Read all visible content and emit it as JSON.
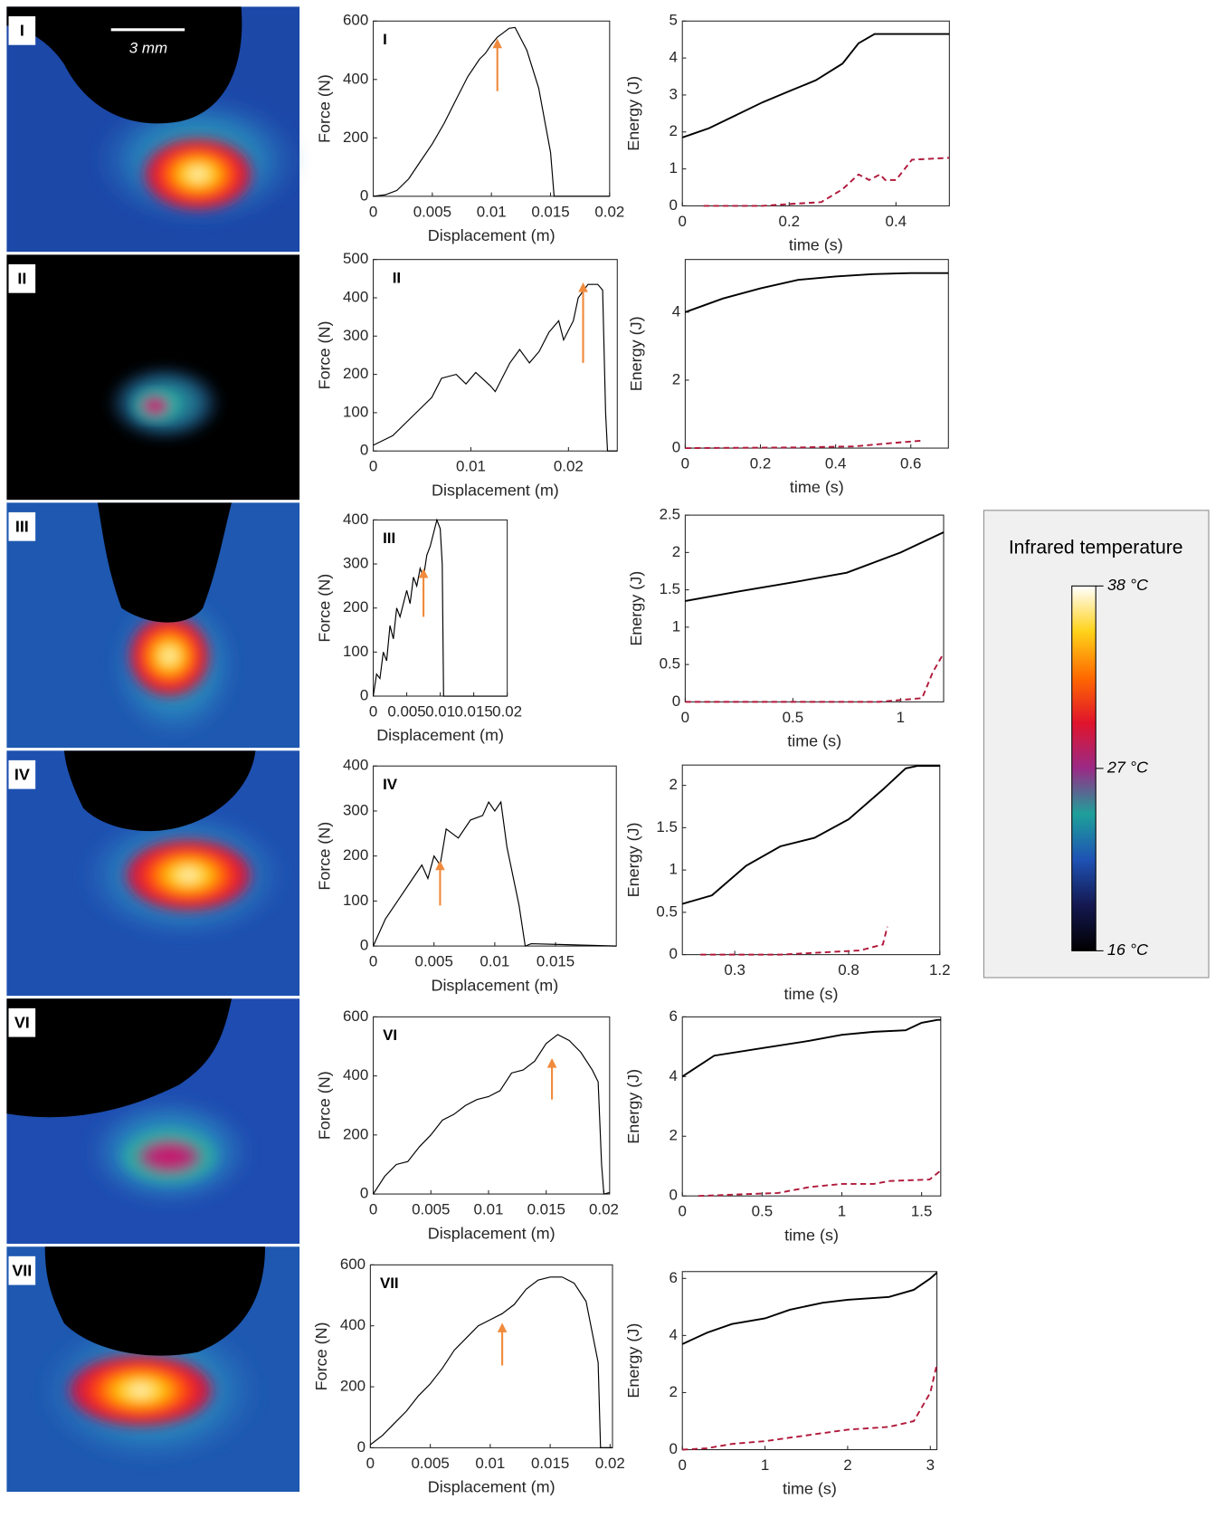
{
  "chart_data": [
    {
      "type": "line",
      "label": "I",
      "xlabel": "Displacement (m)",
      "ylabel": "Force (N)",
      "xlim": [
        0,
        0.02
      ],
      "xticks": [
        0,
        0.005,
        0.01,
        0.015,
        0.02
      ],
      "ylim": [
        0,
        600
      ],
      "yticks": [
        0,
        200,
        400,
        600
      ],
      "series": [
        {
          "color": "#000000",
          "x": [
            0,
            0.001,
            0.002,
            0.003,
            0.004,
            0.005,
            0.006,
            0.007,
            0.008,
            0.009,
            0.0095,
            0.01,
            0.0105,
            0.011,
            0.0115,
            0.012,
            0.013,
            0.014,
            0.015,
            0.0153,
            0.02
          ],
          "values": [
            0,
            5,
            20,
            60,
            120,
            180,
            250,
            330,
            410,
            470,
            490,
            520,
            545,
            560,
            575,
            578,
            500,
            370,
            150,
            0,
            0
          ]
        }
      ],
      "arrow": {
        "x": 0.0105,
        "y": [
          360,
          540
        ],
        "color": "#f08a3c"
      }
    },
    {
      "type": "line",
      "xlabel": "time (s)",
      "ylabel": "Energy (J)",
      "xlim": [
        0,
        0.5
      ],
      "xticks": [
        0,
        0.2,
        0.4
      ],
      "ylim": [
        0,
        5
      ],
      "yticks": [
        0,
        1,
        2,
        3,
        4,
        5
      ],
      "series": [
        {
          "color": "#000000",
          "x": [
            0,
            0.05,
            0.1,
            0.15,
            0.2,
            0.25,
            0.3,
            0.33,
            0.36,
            0.5
          ],
          "values": [
            1.85,
            2.1,
            2.45,
            2.8,
            3.1,
            3.4,
            3.85,
            4.4,
            4.65,
            4.65
          ]
        },
        {
          "color": "#b0183a",
          "dash": true,
          "x": [
            0.04,
            0.15,
            0.2,
            0.26,
            0.3,
            0.33,
            0.35,
            0.37,
            0.38,
            0.4,
            0.43,
            0.5
          ],
          "values": [
            0,
            0,
            0.05,
            0.1,
            0.45,
            0.85,
            0.7,
            0.85,
            0.7,
            0.7,
            1.25,
            1.3
          ]
        }
      ]
    },
    {
      "type": "line",
      "label": "II",
      "xlabel": "Displacement (m)",
      "ylabel": "Force (N)",
      "xlim": [
        0,
        0.025
      ],
      "xticks": [
        0,
        0.01,
        0.02
      ],
      "ylim": [
        0,
        500
      ],
      "yticks": [
        0,
        100,
        200,
        300,
        400,
        500
      ],
      "series": [
        {
          "color": "#000000",
          "x": [
            0,
            0.002,
            0.004,
            0.006,
            0.007,
            0.0085,
            0.0095,
            0.0105,
            0.012,
            0.0125,
            0.014,
            0.015,
            0.016,
            0.017,
            0.018,
            0.019,
            0.0195,
            0.0205,
            0.021,
            0.022,
            0.023,
            0.0235,
            0.0238,
            0.024,
            0.025
          ],
          "values": [
            15,
            40,
            90,
            140,
            190,
            200,
            175,
            205,
            170,
            155,
            230,
            265,
            230,
            260,
            310,
            340,
            290,
            340,
            400,
            435,
            435,
            420,
            100,
            0,
            0
          ]
        }
      ],
      "arrow": {
        "x": 0.0215,
        "y": [
          230,
          440
        ],
        "color": "#f08a3c"
      }
    },
    {
      "type": "line",
      "xlabel": "time (s)",
      "ylabel": "Energy (J)",
      "xlim": [
        0,
        0.7
      ],
      "xticks": [
        0,
        0.2,
        0.4,
        0.6
      ],
      "ylim": [
        0,
        5.55
      ],
      "yticks": [
        0,
        2,
        4
      ],
      "series": [
        {
          "color": "#000000",
          "x": [
            0,
            0.1,
            0.2,
            0.3,
            0.4,
            0.5,
            0.6,
            0.7
          ],
          "values": [
            4.0,
            4.4,
            4.7,
            4.95,
            5.05,
            5.12,
            5.15,
            5.15
          ]
        },
        {
          "color": "#b0183a",
          "dash": true,
          "x": [
            0,
            0.3,
            0.45,
            0.55,
            0.63
          ],
          "values": [
            0,
            0.02,
            0.05,
            0.15,
            0.22
          ]
        }
      ]
    },
    {
      "type": "line",
      "label": "III",
      "xlabel": "Displacement (m)",
      "ylabel": "Force (N)",
      "xlim": [
        0,
        0.02
      ],
      "xticks": [
        0,
        0.005,
        0.01,
        0.015,
        0.02
      ],
      "ylim": [
        0,
        400
      ],
      "yticks": [
        0,
        100,
        200,
        300,
        400
      ],
      "series": [
        {
          "color": "#000000",
          "x": [
            0,
            0.0005,
            0.001,
            0.0015,
            0.002,
            0.0025,
            0.003,
            0.0035,
            0.004,
            0.005,
            0.0055,
            0.006,
            0.0065,
            0.007,
            0.0075,
            0.008,
            0.0085,
            0.009,
            0.0095,
            0.01,
            0.0103,
            0.0105,
            0.02
          ],
          "values": [
            0,
            50,
            40,
            100,
            80,
            160,
            130,
            200,
            180,
            240,
            210,
            270,
            250,
            290,
            270,
            320,
            340,
            370,
            400,
            380,
            300,
            0,
            0
          ]
        }
      ],
      "arrow": {
        "x": 0.0075,
        "y": [
          180,
          290
        ],
        "color": "#f08a3c"
      }
    },
    {
      "type": "line",
      "xlabel": "time (s)",
      "ylabel": "Energy (J)",
      "xlim": [
        0,
        1.2
      ],
      "xticks": [
        0,
        0.5,
        1
      ],
      "ylim": [
        0,
        2.5
      ],
      "yticks": [
        0,
        0.5,
        1,
        1.5,
        2,
        2.5
      ],
      "series": [
        {
          "color": "#000000",
          "x": [
            0,
            0.25,
            0.5,
            0.75,
            1,
            1.2
          ],
          "values": [
            1.35,
            1.48,
            1.6,
            1.73,
            2.0,
            2.27
          ]
        },
        {
          "color": "#b0183a",
          "dash": true,
          "x": [
            0,
            0.9,
            1.1,
            1.15,
            1.2
          ],
          "values": [
            0,
            0,
            0.05,
            0.4,
            0.65
          ]
        }
      ]
    },
    {
      "type": "line",
      "label": "IV",
      "xlabel": "Displacement (m)",
      "ylabel": "Force (N)",
      "xlim": [
        0,
        0.02
      ],
      "xticks": [
        0,
        0.005,
        0.01,
        0.015
      ],
      "ylim": [
        0,
        400
      ],
      "yticks": [
        0,
        100,
        200,
        300,
        400
      ],
      "series": [
        {
          "color": "#000000",
          "x": [
            0,
            0.001,
            0.002,
            0.003,
            0.004,
            0.0045,
            0.005,
            0.0055,
            0.006,
            0.007,
            0.008,
            0.009,
            0.0095,
            0.01,
            0.0105,
            0.011,
            0.012,
            0.0125,
            0.013,
            0.02
          ],
          "values": [
            0,
            60,
            100,
            140,
            180,
            150,
            200,
            180,
            260,
            240,
            280,
            290,
            320,
            300,
            320,
            220,
            90,
            0,
            5,
            0
          ]
        }
      ],
      "arrow": {
        "x": 0.0055,
        "y": [
          90,
          190
        ],
        "color": "#f08a3c"
      }
    },
    {
      "type": "line",
      "xlabel": "time (s)",
      "ylabel": "Energy (J)",
      "xlim": [
        0.07,
        1.2
      ],
      "xticks": [
        0.3,
        0.8,
        1.2
      ],
      "ylim": [
        0,
        2.24
      ],
      "yticks": [
        0,
        0.5,
        1,
        1.5,
        2
      ],
      "series": [
        {
          "color": "#000000",
          "x": [
            0.07,
            0.2,
            0.35,
            0.5,
            0.65,
            0.8,
            0.95,
            1.05,
            1.1,
            1.2
          ],
          "values": [
            0.6,
            0.7,
            1.05,
            1.28,
            1.38,
            1.6,
            1.95,
            2.2,
            2.23,
            2.23
          ]
        },
        {
          "color": "#b0183a",
          "dash": true,
          "x": [
            0.15,
            0.5,
            0.85,
            0.95,
            0.97
          ],
          "values": [
            0,
            0,
            0.05,
            0.12,
            0.33
          ]
        }
      ]
    },
    {
      "type": "line",
      "label": "VI",
      "xlabel": "Displacement (m)",
      "ylabel": "Force (N)",
      "xlim": [
        0,
        0.0205
      ],
      "xticks": [
        0,
        0.005,
        0.01,
        0.015,
        0.02
      ],
      "ylim": [
        0,
        600
      ],
      "yticks": [
        0,
        200,
        400,
        600
      ],
      "series": [
        {
          "color": "#000000",
          "x": [
            0,
            0.001,
            0.002,
            0.003,
            0.004,
            0.005,
            0.006,
            0.007,
            0.008,
            0.009,
            0.01,
            0.011,
            0.012,
            0.013,
            0.014,
            0.015,
            0.016,
            0.017,
            0.018,
            0.019,
            0.0195,
            0.0198,
            0.02,
            0.0205
          ],
          "values": [
            0,
            60,
            100,
            110,
            160,
            200,
            250,
            270,
            300,
            320,
            330,
            350,
            410,
            420,
            450,
            510,
            540,
            520,
            480,
            420,
            380,
            100,
            0,
            5
          ]
        }
      ],
      "arrow": {
        "x": 0.0155,
        "y": [
          320,
          460
        ],
        "color": "#f08a3c"
      }
    },
    {
      "type": "line",
      "xlabel": "time (s)",
      "ylabel": "Energy (J)",
      "xlim": [
        0,
        1.62
      ],
      "xticks": [
        0,
        0.5,
        1,
        1.5
      ],
      "ylim": [
        0,
        6
      ],
      "yticks": [
        0,
        2,
        4,
        6
      ],
      "series": [
        {
          "color": "#000000",
          "x": [
            0,
            0.2,
            0.5,
            0.8,
            1,
            1.2,
            1.4,
            1.5,
            1.6,
            1.62
          ],
          "values": [
            4.0,
            4.7,
            4.95,
            5.2,
            5.4,
            5.5,
            5.55,
            5.8,
            5.9,
            5.9
          ]
        },
        {
          "color": "#b0183a",
          "dash": true,
          "x": [
            0.1,
            0.6,
            0.8,
            1,
            1.2,
            1.3,
            1.55,
            1.62
          ],
          "values": [
            0,
            0.1,
            0.3,
            0.4,
            0.4,
            0.5,
            0.55,
            0.85
          ]
        }
      ]
    },
    {
      "type": "line",
      "label": "VII",
      "xlabel": "Displacement (m)",
      "ylabel": "Force (N)",
      "xlim": [
        0,
        0.0202
      ],
      "xticks": [
        0,
        0.005,
        0.01,
        0.015,
        0.02
      ],
      "ylim": [
        0,
        600
      ],
      "yticks": [
        0,
        200,
        400,
        600
      ],
      "series": [
        {
          "color": "#000000",
          "x": [
            0,
            0.001,
            0.002,
            0.003,
            0.004,
            0.005,
            0.006,
            0.007,
            0.008,
            0.009,
            0.01,
            0.011,
            0.012,
            0.013,
            0.014,
            0.015,
            0.016,
            0.017,
            0.018,
            0.019,
            0.0192,
            0.0202
          ],
          "values": [
            10,
            40,
            80,
            120,
            170,
            210,
            260,
            320,
            360,
            400,
            420,
            440,
            470,
            520,
            550,
            560,
            560,
            540,
            480,
            280,
            0,
            0
          ]
        }
      ],
      "arrow": {
        "x": 0.011,
        "y": [
          270,
          410
        ],
        "color": "#f08a3c"
      }
    },
    {
      "type": "line",
      "xlabel": "time (s)",
      "ylabel": "Energy (J)",
      "xlim": [
        0,
        3.08
      ],
      "xticks": [
        0,
        1,
        2,
        3
      ],
      "ylim": [
        0,
        6.24
      ],
      "yticks": [
        0,
        2,
        4,
        6
      ],
      "series": [
        {
          "color": "#000000",
          "x": [
            0,
            0.3,
            0.6,
            1,
            1.3,
            1.7,
            2,
            2.5,
            2.8,
            3,
            3.08
          ],
          "values": [
            3.7,
            4.1,
            4.4,
            4.6,
            4.9,
            5.15,
            5.25,
            5.35,
            5.6,
            6.0,
            6.2
          ]
        },
        {
          "color": "#b0183a",
          "dash": true,
          "x": [
            0,
            0.3,
            0.6,
            1,
            1.5,
            2,
            2.5,
            2.8,
            3,
            3.08
          ],
          "values": [
            0,
            0.05,
            0.2,
            0.3,
            0.5,
            0.7,
            0.8,
            1.0,
            2.0,
            3.0
          ]
        }
      ]
    }
  ],
  "image_panels": [
    {
      "label": "I",
      "scale_bar": "3 mm"
    },
    {
      "label": "II"
    },
    {
      "label": "III"
    },
    {
      "label": "IV"
    },
    {
      "label": "VI"
    },
    {
      "label": "VII"
    }
  ],
  "colorbar": {
    "title": "Infrared temperature",
    "lim": [
      16,
      38
    ],
    "ticks": [
      {
        "value": 38,
        "label": "38 °C"
      },
      {
        "value": 27,
        "label": "27 °C"
      },
      {
        "value": 16,
        "label": "16 °C"
      }
    ],
    "colors": [
      "#ffffff",
      "#ffd21a",
      "#ff6a00",
      "#e0142c",
      "#9a2a86",
      "#1ea09a",
      "#1e52b4",
      "#141850",
      "#000000"
    ]
  }
}
